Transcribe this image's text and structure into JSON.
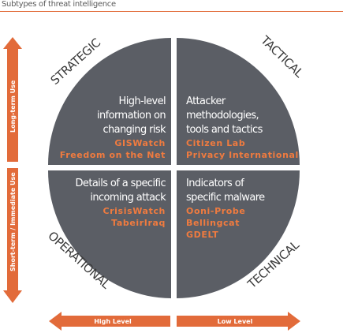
{
  "title": "Subtypes of threat intelligence",
  "labels": {
    "strategic": "STRATEGIC",
    "tactical": "TACTICAL",
    "operational": "OPERATIONAL",
    "technical": "TECHNICAL"
  },
  "axes": {
    "long_term": "Long-term Use",
    "short_term": "Short-term / Immediate Use",
    "high_level": "High Level",
    "low_level": "Low Level"
  },
  "quadrants": {
    "strategic": {
      "lines": [
        "High-level",
        "information on",
        "changing risk"
      ],
      "sources": [
        "GISWatch",
        "Freedom on the Net"
      ]
    },
    "tactical": {
      "lines": [
        "Attacker",
        "methodologies,",
        "tools and tactics"
      ],
      "sources": [
        "Citizen Lab",
        "Privacy International"
      ]
    },
    "operational": {
      "lines": [
        "Details of a specific",
        "incoming attack"
      ],
      "sources": [
        "CrisisWatch",
        "TabeirIraq"
      ]
    },
    "technical": {
      "lines": [
        "Indicators of",
        "specific malware"
      ],
      "sources": [
        "Ooni-Probe",
        "Bellingcat",
        "GDELT"
      ]
    }
  },
  "colors": {
    "accent": "#e26b3a",
    "quadrant": "#5b5e65",
    "source_text": "#f07b3f"
  }
}
